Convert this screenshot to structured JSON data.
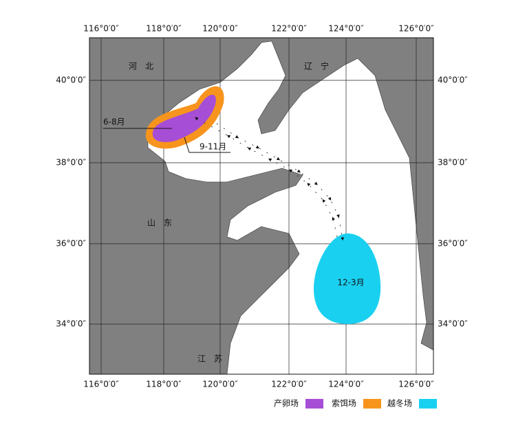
{
  "longitude_ticks": [
    "116°0′0″",
    "118°0′0″",
    "120°0′0″",
    "122°0′0″",
    "124°0′0″",
    "126°0′0″"
  ],
  "latitude_ticks": [
    "40°0′0″",
    "38°0′0″",
    "36°0′0″",
    "34°0′0″"
  ],
  "regions": [
    "河　北",
    "辽　宁",
    "山　东",
    "江　苏"
  ],
  "grounds": {
    "spawning": "6-8月",
    "feeding": "9-11月",
    "wintering": "12-3月"
  },
  "legend": [
    "产卵场",
    "索饵场",
    "越冬场"
  ]
}
